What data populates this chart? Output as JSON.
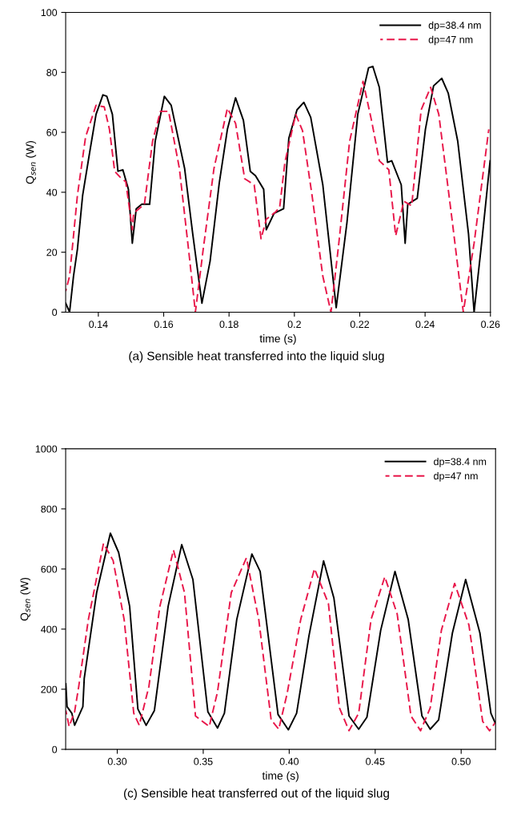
{
  "chart_data": [
    {
      "type": "line",
      "xlabel": "time (s)",
      "ylabel": "Q$_{sen}$ (W)",
      "xlim": [
        0.13,
        0.26
      ],
      "xticks": [
        0.14,
        0.16,
        0.18,
        0.2,
        0.22,
        0.24,
        0.26
      ],
      "ylim": [
        0,
        100
      ],
      "yticks": [
        0,
        20,
        40,
        60,
        80,
        100
      ],
      "grid": false,
      "legend": "top right",
      "annotations": [
        "(a) Sensible heat transferred into the liquid slug"
      ],
      "series": [
        {
          "name": "dp=38.4 nm",
          "color": "#000000",
          "line_style": "solid",
          "x": [
            0.13,
            0.1312,
            0.1324,
            0.1336,
            0.1352,
            0.1373,
            0.1393,
            0.1414,
            0.1426,
            0.1443,
            0.146,
            0.1475,
            0.1492,
            0.1504,
            0.1516,
            0.1533,
            0.1557,
            0.1574,
            0.1602,
            0.1623,
            0.1664,
            0.1689,
            0.1717,
            0.1742,
            0.177,
            0.1795,
            0.182,
            0.1844,
            0.1865,
            0.1881,
            0.1906,
            0.1914,
            0.1938,
            0.1967,
            0.1983,
            0.2008,
            0.2029,
            0.205,
            0.2087,
            0.2128,
            0.2161,
            0.2194,
            0.2227,
            0.224,
            0.226,
            0.2285,
            0.2298,
            0.2327,
            0.2339,
            0.2347,
            0.2376,
            0.2401,
            0.2426,
            0.2451,
            0.2471,
            0.25,
            0.2533,
            0.255,
            0.2574,
            0.2599
          ],
          "values": [
            3,
            0,
            12,
            21,
            39,
            53,
            66,
            72.5,
            72,
            66,
            47,
            47.5,
            41,
            23,
            34.5,
            36,
            36,
            57,
            72,
            69,
            48,
            26,
            3,
            17,
            43,
            61,
            71.5,
            64,
            47,
            45.5,
            41,
            27.5,
            33,
            34.5,
            58,
            67.5,
            70,
            65,
            42.5,
            1.5,
            30,
            66,
            81.5,
            82,
            75,
            50,
            50.5,
            42.5,
            23,
            36,
            38,
            61,
            75.5,
            78,
            73,
            57,
            26,
            0,
            24,
            50.5
          ]
        },
        {
          "name": "dp=47 nm",
          "color": "#e8174a",
          "line_style": "dashed",
          "x": [
            0.13,
            0.1312,
            0.1336,
            0.1361,
            0.1393,
            0.1418,
            0.1434,
            0.145,
            0.1467,
            0.1484,
            0.1504,
            0.1508,
            0.1541,
            0.1566,
            0.159,
            0.1615,
            0.1648,
            0.1676,
            0.1697,
            0.1721,
            0.1754,
            0.1795,
            0.182,
            0.1848,
            0.1877,
            0.1898,
            0.1914,
            0.1943,
            0.1955,
            0.1971,
            0.2004,
            0.2025,
            0.2054,
            0.2087,
            0.2112,
            0.2136,
            0.2169,
            0.221,
            0.2236,
            0.226,
            0.2289,
            0.231,
            0.2335,
            0.2359,
            0.2388,
            0.2417,
            0.2442,
            0.2483,
            0.2517,
            0.255,
            0.2595
          ],
          "values": [
            7,
            12,
            39,
            58.5,
            69,
            68.5,
            61,
            47,
            45,
            43.5,
            27.5,
            33,
            36,
            57,
            67,
            67,
            48,
            21,
            0,
            21,
            48,
            68,
            63,
            44.5,
            42.5,
            24.5,
            31,
            33.5,
            35,
            50,
            66,
            60.5,
            39,
            12,
            0,
            23,
            57,
            77,
            64,
            50.5,
            47.5,
            25.5,
            37,
            35.5,
            67.5,
            75,
            66,
            30.5,
            0,
            23,
            61
          ]
        }
      ]
    },
    {
      "type": "line",
      "xlabel": "time (s)",
      "ylabel": "Q$_{sen}$ (W)",
      "xlim": [
        0.27,
        0.52
      ],
      "xticks": [
        {
          "value": 0.3,
          "label": "0.30"
        },
        0.35,
        {
          "value": 0.4,
          "label": "0.40"
        },
        0.45,
        {
          "value": 0.5,
          "label": "0.50"
        }
      ],
      "ylim": [
        0,
        1000
      ],
      "yticks": [
        0,
        200,
        400,
        600,
        800,
        1000
      ],
      "grid": false,
      "legend": "top right",
      "annotations": [
        "(c) Sensible heat transferred out of the liquid slug"
      ],
      "series": [
        {
          "name": "dp=38.4 nm",
          "color": "#000000",
          "line_style": "solid",
          "x": [
            0.2701,
            0.2708,
            0.2736,
            0.2752,
            0.28,
            0.2808,
            0.288,
            0.296,
            0.3008,
            0.3072,
            0.312,
            0.3168,
            0.3216,
            0.3296,
            0.3375,
            0.344,
            0.3527,
            0.3583,
            0.3623,
            0.3695,
            0.3783,
            0.3831,
            0.3935,
            0.3995,
            0.4043,
            0.4115,
            0.42,
            0.426,
            0.4348,
            0.4404,
            0.4452,
            0.4532,
            0.4615,
            0.4692,
            0.4772,
            0.482,
            0.4869,
            0.4949,
            0.5026,
            0.5109,
            0.5173,
            0.5197
          ],
          "values": [
            218,
            142,
            120,
            80,
            142,
            236,
            521,
            719,
            655,
            476,
            134,
            80,
            129,
            476,
            681,
            565,
            125,
            71,
            120,
            432,
            650,
            592,
            116,
            65,
            120,
            378,
            627,
            503,
            111,
            67,
            107,
            396,
            592,
            432,
            111,
            67,
            98,
            387,
            565,
            387,
            120,
            89
          ]
        },
        {
          "name": "dp=47 nm",
          "color": "#e8174a",
          "line_style": "dashed",
          "x": [
            0.2701,
            0.272,
            0.2752,
            0.2776,
            0.2832,
            0.292,
            0.2976,
            0.304,
            0.3096,
            0.3128,
            0.3184,
            0.3248,
            0.3327,
            0.3391,
            0.3455,
            0.3535,
            0.3583,
            0.3663,
            0.3751,
            0.3823,
            0.3895,
            0.3939,
            0.3987,
            0.4067,
            0.4147,
            0.4228,
            0.4292,
            0.4348,
            0.4404,
            0.4476,
            0.4556,
            0.4628,
            0.4708,
            0.4764,
            0.482,
            0.4885,
            0.4962,
            0.5045,
            0.5125,
            0.5165,
            0.5198
          ],
          "values": [
            129,
            76,
            125,
            209,
            432,
            685,
            628,
            432,
            120,
            80,
            209,
            476,
            663,
            521,
            111,
            76,
            191,
            521,
            637,
            432,
            98,
            67,
            183,
            432,
            601,
            485,
            138,
            62,
            120,
            432,
            574,
            450,
            111,
            62,
            138,
            396,
            552,
            414,
            93,
            62,
            89
          ]
        }
      ]
    }
  ]
}
